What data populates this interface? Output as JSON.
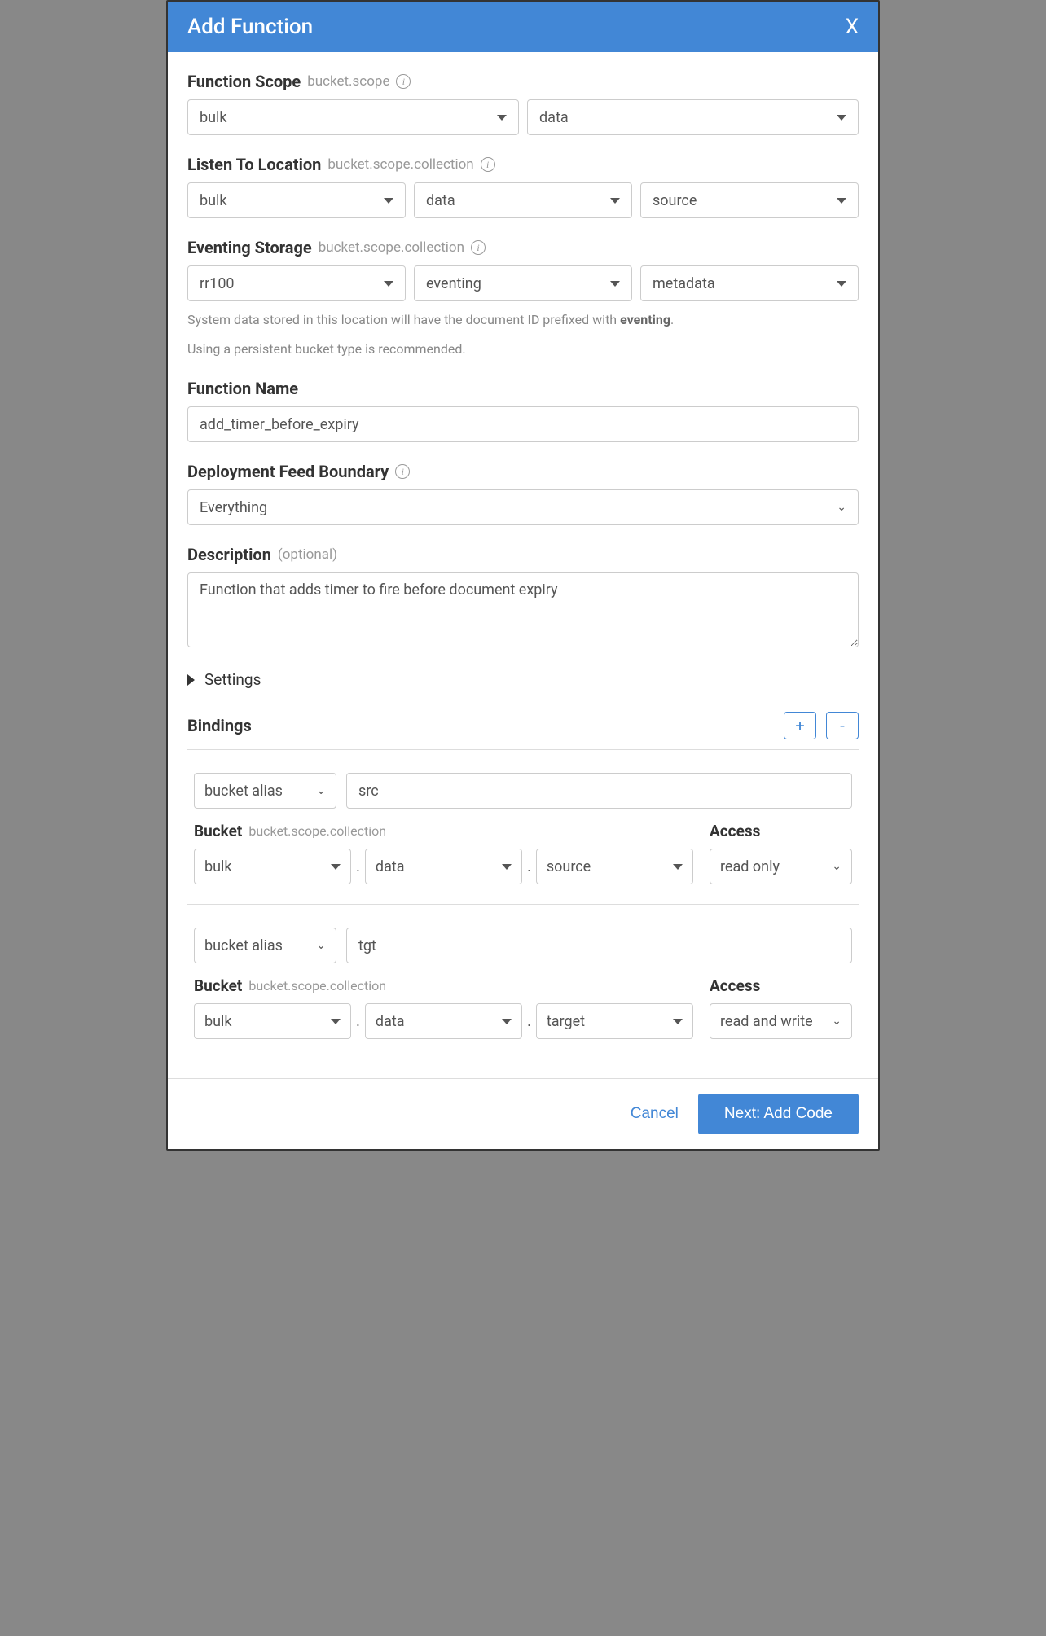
{
  "header": {
    "title": "Add Function",
    "close": "X"
  },
  "functionScope": {
    "label": "Function Scope",
    "hint": "bucket.scope",
    "bucket": "bulk",
    "scope": "data"
  },
  "listenTo": {
    "label": "Listen To Location",
    "hint": "bucket.scope.collection",
    "bucket": "bulk",
    "scope": "data",
    "collection": "source"
  },
  "eventingStorage": {
    "label": "Eventing Storage",
    "hint": "bucket.scope.collection",
    "bucket": "rr100",
    "scope": "eventing",
    "collection": "metadata",
    "help1_prefix": "System data stored in this location will have the document ID prefixed with ",
    "help1_strong": "eventing",
    "help1_suffix": ".",
    "help2": "Using a persistent bucket type is recommended."
  },
  "functionName": {
    "label": "Function Name",
    "value": "add_timer_before_expiry"
  },
  "feedBoundary": {
    "label": "Deployment Feed Boundary",
    "value": "Everything"
  },
  "description": {
    "label": "Description",
    "hint": "(optional)",
    "value": "Function that adds timer to fire before document expiry"
  },
  "settings": {
    "label": "Settings"
  },
  "bindings": {
    "label": "Bindings",
    "plus": "+",
    "minus": "-",
    "typeLabel": "bucket alias",
    "bucketLabel": "Bucket",
    "bucketHint": "bucket.scope.collection",
    "accessLabel": "Access",
    "items": [
      {
        "alias": "src",
        "bucket": "bulk",
        "scope": "data",
        "collection": "source",
        "access": "read only"
      },
      {
        "alias": "tgt",
        "bucket": "bulk",
        "scope": "data",
        "collection": "target",
        "access": "read and write"
      }
    ]
  },
  "footer": {
    "cancel": "Cancel",
    "next": "Next: Add Code"
  },
  "colors": {
    "primary": "#4287d6",
    "border": "#cccccc",
    "text": "#555555",
    "hint": "#999999"
  }
}
